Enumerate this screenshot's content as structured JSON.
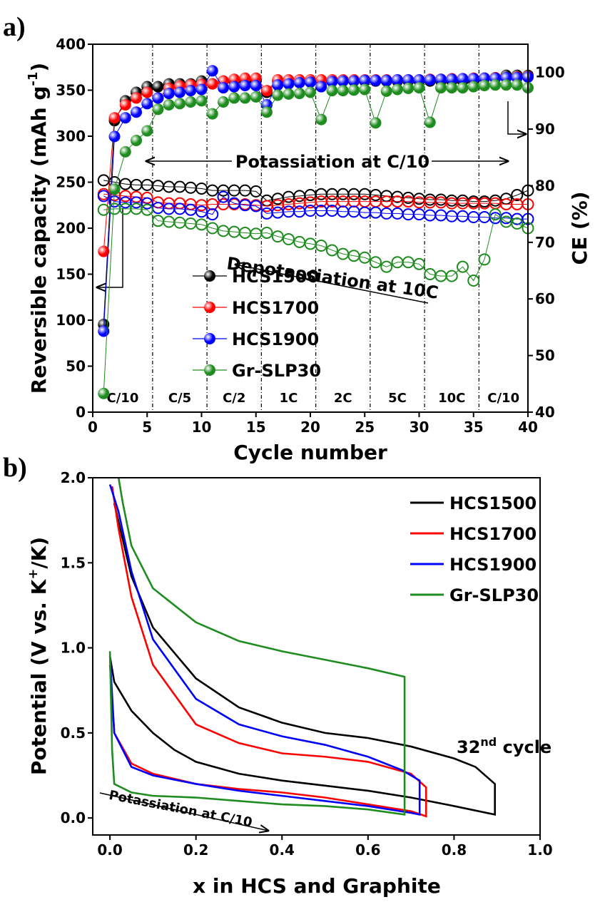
{
  "chart_data": [
    {
      "type": "line",
      "panel_label": "a)",
      "xlabel": "Cycle number",
      "ylabel": "Reversible capacity (mAh g",
      "ylabel_sup": "-1",
      "ylabel_end": ")",
      "y2label": "CE (%)",
      "xlim": [
        0,
        40
      ],
      "ylim": [
        0,
        400
      ],
      "y2lim": [
        40,
        105
      ],
      "xticks": [
        0,
        5,
        10,
        15,
        20,
        25,
        30,
        35,
        40
      ],
      "yticks": [
        0,
        50,
        100,
        150,
        200,
        250,
        300,
        350,
        400
      ],
      "y2ticks": [
        40,
        50,
        60,
        70,
        80,
        90,
        100
      ],
      "x": [
        1,
        2,
        3,
        4,
        5,
        6,
        7,
        8,
        9,
        10,
        11,
        12,
        13,
        14,
        15,
        16,
        17,
        18,
        19,
        20,
        21,
        22,
        23,
        24,
        25,
        26,
        27,
        28,
        29,
        30,
        31,
        32,
        33,
        34,
        35,
        36,
        37,
        38,
        39,
        40
      ],
      "regions": {
        "boundaries": [
          5.5,
          10.5,
          15.5,
          20.5,
          25.5,
          30.5,
          35.5
        ],
        "labels": [
          "C/10",
          "C/5",
          "C/2",
          "1C",
          "2C",
          "5C",
          "10C",
          "C/10"
        ]
      },
      "annotation": "Potassiation at C/10",
      "series": [
        {
          "name": "HCS1500",
          "color": "#000000",
          "values": [
            252,
            250,
            248,
            247,
            247,
            246,
            245,
            245,
            244,
            243,
            241,
            241,
            241,
            241,
            240,
            230,
            232,
            234,
            235,
            236,
            237,
            237,
            237,
            237,
            237,
            236,
            235,
            234,
            233,
            232,
            231,
            231,
            230,
            230,
            229,
            229,
            230,
            232,
            236,
            241
          ],
          "ce": {
            "axis": "y2",
            "values": [
              55.5,
              91.5,
              95,
              96.5,
              97.5,
              97.5,
              98,
              98,
              98,
              98.5,
              98,
              98.5,
              98.5,
              98.5,
              98.5,
              96.5,
              98.5,
              98.5,
              98.5,
              98.5,
              98.5,
              98.5,
              98.5,
              98.5,
              98.5,
              98.5,
              98.5,
              98.5,
              98.5,
              98.5,
              98.5,
              98.5,
              98.5,
              98.5,
              98.5,
              99,
              99,
              99.5,
              99.5,
              99.5
            ]
          }
        },
        {
          "name": "HCS1700",
          "color": "#ff0000",
          "values": [
            237,
            236,
            235,
            234,
            233,
            228,
            227,
            227,
            226,
            225,
            226,
            226,
            226,
            226,
            225,
            224,
            225,
            226,
            227,
            228,
            229,
            229,
            229,
            229,
            229,
            229,
            229,
            229,
            229,
            228,
            228,
            228,
            227,
            227,
            227,
            227,
            227,
            226,
            226,
            226
          ],
          "ce": {
            "axis": "y2",
            "values": [
              68.4,
              92,
              94.3,
              95.5,
              96.5,
              95.5,
              97.2,
              97.6,
              97.8,
              97.9,
              98,
              98.5,
              98.8,
              99,
              99,
              96.8,
              98.7,
              98.7,
              98.7,
              98.7,
              98.7,
              98.7,
              98.7,
              98.7,
              98.7,
              98.7,
              98.7,
              98.7,
              98.7,
              98.7,
              98.8,
              98.8,
              98.9,
              98.9,
              99,
              99,
              99.1,
              99.1,
              99.2,
              99.3
            ]
          }
        },
        {
          "name": "HCS1900",
          "color": "#0000ff",
          "values": [
            235,
            229,
            228,
            228,
            227,
            222,
            221,
            221,
            220,
            218,
            215,
            234,
            227,
            225,
            224,
            216,
            217,
            218,
            218,
            219,
            219,
            219,
            218,
            218,
            217,
            217,
            216,
            216,
            215,
            215,
            214,
            214,
            213,
            213,
            212,
            212,
            211,
            211,
            210,
            210
          ],
          "ce": {
            "axis": "y2",
            "values": [
              54.3,
              88.7,
              92,
              93,
              94.5,
              95.5,
              96.3,
              96.5,
              96.8,
              97,
              100.3,
              97.3,
              97.5,
              97.7,
              97.7,
              94.3,
              97.8,
              98,
              98.2,
              98.3,
              97.5,
              98.4,
              98.5,
              98.5,
              98.6,
              98.6,
              98.6,
              98.7,
              98.7,
              98.7,
              98.7,
              98.8,
              98.8,
              98.9,
              98.9,
              99,
              99,
              99.1,
              99.1,
              99.2
            ]
          }
        },
        {
          "name": "Gr-SLP30",
          "color": "#1e8c1e",
          "values": [
            220,
            221,
            221,
            221,
            220,
            208,
            207,
            206,
            205,
            204,
            200,
            197,
            196,
            195,
            194,
            195,
            191,
            188,
            185,
            183,
            181,
            176,
            172,
            170,
            168,
            163,
            158,
            163,
            163,
            161,
            150,
            148,
            148,
            158,
            143,
            166,
            215,
            207,
            205,
            200
          ],
          "ce": {
            "axis": "y2",
            "values": [
              43.3,
              79.4,
              86,
              88,
              89.7,
              93.5,
              94.3,
              94.5,
              94.8,
              95,
              92.7,
              94.8,
              95.5,
              95.5,
              95.7,
              93,
              96,
              96.2,
              96.3,
              96.5,
              91.7,
              96.8,
              96.8,
              96.9,
              97,
              91.1,
              96.7,
              97,
              97.2,
              97.3,
              91.2,
              97.3,
              97.3,
              97.3,
              97.5,
              97.7,
              97.8,
              97.8,
              97.8,
              97.3
            ]
          }
        }
      ]
    },
    {
      "type": "line",
      "panel_label": "b)",
      "xlabel": "x in HCS and Graphite",
      "ylabel": "Potential (V vs. K",
      "ylabel_sup": "+",
      "ylabel_end": "/K)",
      "xlim": [
        -0.04,
        1.0
      ],
      "ylim": [
        -0.1,
        2.0
      ],
      "xticks": [
        {
          "value": 0,
          "label": "0.0"
        },
        0.2,
        0.4,
        0.6,
        0.8,
        {
          "value": 1,
          "label": "1.0"
        }
      ],
      "yticks": [
        {
          "value": 0,
          "label": "0.0"
        },
        0.5,
        {
          "value": 1,
          "label": "1.0"
        },
        1.5,
        {
          "value": 2,
          "label": "2.0"
        }
      ],
      "annotations": {
        "depotassiation": "Depotassiation at 10C",
        "potassiation": "Potassiation at C/10",
        "cycle": "32",
        "cycle_sup": "nd",
        "cycle_end": " cycle"
      },
      "series": [
        {
          "name": "HCS1500",
          "color": "#000000",
          "x": [
            0,
            0.01,
            0.05,
            0.1,
            0.15,
            0.2,
            0.3,
            0.4,
            0.5,
            0.6,
            0.7,
            0.8,
            0.895,
            0.895,
            0.85,
            0.8,
            0.7,
            0.6,
            0.5,
            0.4,
            0.3,
            0.2,
            0.1,
            0.05,
            0.01
          ],
          "values": [
            0.95,
            0.8,
            0.63,
            0.5,
            0.4,
            0.33,
            0.26,
            0.22,
            0.19,
            0.16,
            0.12,
            0.07,
            0.02,
            0.2,
            0.3,
            0.35,
            0.42,
            0.47,
            0.5,
            0.56,
            0.65,
            0.82,
            1.12,
            1.42,
            1.85
          ]
        },
        {
          "name": "HCS1700",
          "color": "#ff0000",
          "x": [
            0,
            0.01,
            0.05,
            0.1,
            0.2,
            0.3,
            0.4,
            0.5,
            0.6,
            0.7,
            0.735,
            0.735,
            0.7,
            0.6,
            0.5,
            0.4,
            0.3,
            0.2,
            0.1,
            0.05,
            0.02,
            0.005
          ],
          "values": [
            0.9,
            0.5,
            0.32,
            0.26,
            0.2,
            0.17,
            0.15,
            0.12,
            0.08,
            0.04,
            0.01,
            0.18,
            0.26,
            0.33,
            0.36,
            0.38,
            0.44,
            0.55,
            0.9,
            1.3,
            1.7,
            1.95
          ]
        },
        {
          "name": "HCS1900",
          "color": "#0000ff",
          "x": [
            0,
            0.01,
            0.05,
            0.1,
            0.2,
            0.3,
            0.4,
            0.5,
            0.6,
            0.7,
            0.72,
            0.72,
            0.68,
            0.6,
            0.5,
            0.4,
            0.3,
            0.2,
            0.1,
            0.05,
            0.02,
            0
          ],
          "values": [
            0.95,
            0.5,
            0.3,
            0.25,
            0.2,
            0.16,
            0.13,
            0.1,
            0.07,
            0.03,
            0.02,
            0.22,
            0.28,
            0.36,
            0.43,
            0.48,
            0.55,
            0.7,
            1.05,
            1.45,
            1.8,
            1.96
          ]
        },
        {
          "name": "Gr-SLP30",
          "color": "#1e8c1e",
          "x": [
            0,
            0.005,
            0.01,
            0.05,
            0.1,
            0.2,
            0.3,
            0.4,
            0.5,
            0.6,
            0.685,
            0.685,
            0.6,
            0.5,
            0.4,
            0.3,
            0.2,
            0.1,
            0.05,
            0.03,
            0.02
          ],
          "values": [
            0.98,
            0.4,
            0.2,
            0.15,
            0.13,
            0.12,
            0.1,
            0.08,
            0.07,
            0.05,
            0.02,
            0.83,
            0.88,
            0.93,
            0.98,
            1.04,
            1.15,
            1.35,
            1.6,
            1.85,
            2.0
          ]
        }
      ]
    }
  ]
}
